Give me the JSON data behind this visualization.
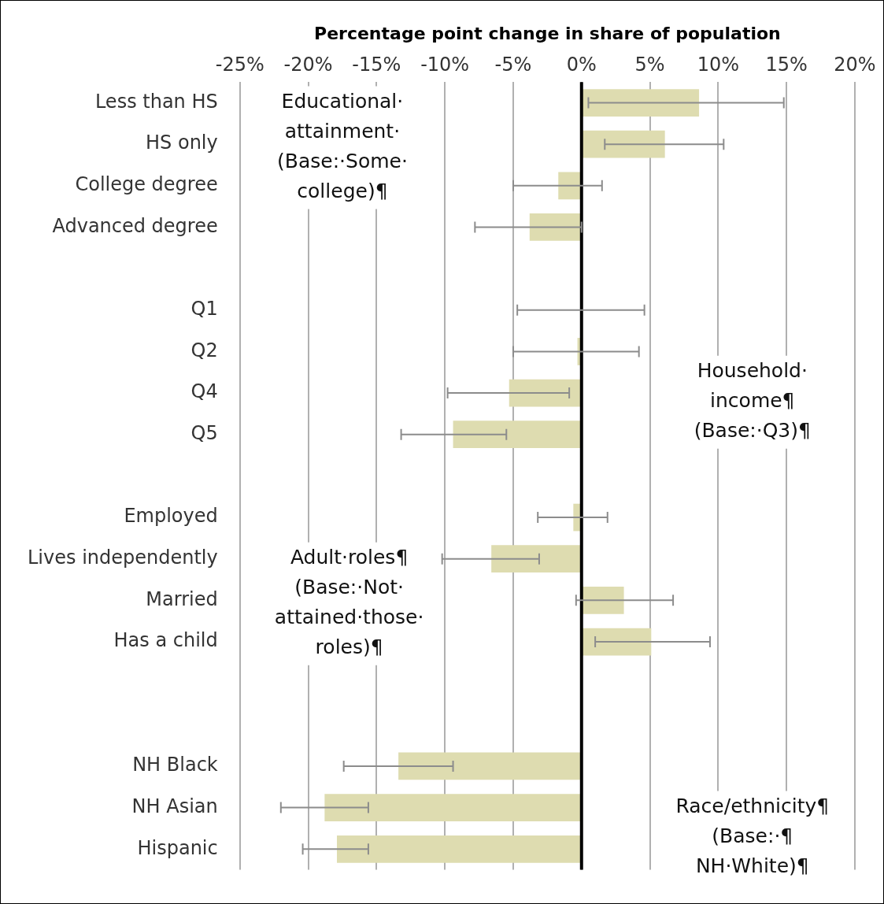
{
  "chart_data": {
    "type": "bar",
    "orientation": "horizontal",
    "xlabel": "Percentage point change in share of population",
    "categories": [
      "Less than HS",
      "HS only",
      "College degree",
      "Advanced degree",
      null,
      "Q1",
      "Q2",
      "Q4",
      "Q5",
      null,
      "Employed",
      "Lives independently",
      "Married",
      "Has a child",
      null,
      null,
      "NH Black",
      "NH Asian",
      "Hispanic"
    ],
    "values": [
      8.6,
      6.1,
      -1.7,
      -3.8,
      null,
      0,
      -0.3,
      -5.3,
      -9.4,
      null,
      -0.6,
      -6.6,
      3.1,
      5.1,
      null,
      null,
      -13.4,
      -18.8,
      -17.9
    ],
    "errors": [
      [
        0.5,
        14.8
      ],
      [
        1.7,
        10.4
      ],
      [
        -5.0,
        1.5
      ],
      [
        -7.8,
        0
      ],
      null,
      [
        -4.7,
        4.6
      ],
      [
        -5.0,
        4.2
      ],
      [
        -9.8,
        -0.9
      ],
      [
        -13.2,
        -5.5
      ],
      null,
      [
        -3.2,
        1.9
      ],
      [
        -10.2,
        -3.1
      ],
      [
        -0.4,
        6.7
      ],
      [
        1.0,
        9.4
      ],
      null,
      null,
      [
        -17.4,
        -9.4
      ],
      [
        -22.0,
        -15.6
      ],
      [
        -20.4,
        -15.6
      ]
    ],
    "color": "#dedcb0",
    "xlim": [
      -25,
      20
    ],
    "xticks": [
      {
        "value": -25,
        "label": "-25%"
      },
      {
        "value": -20,
        "label": "-20%"
      },
      {
        "value": -15,
        "label": "-15%"
      },
      {
        "value": -10,
        "label": "-10%"
      },
      {
        "value": -5,
        "label": "-5%"
      },
      {
        "value": 0,
        "label": "0%"
      },
      {
        "value": 5,
        "label": "5%"
      },
      {
        "value": 10,
        "label": "10%"
      },
      {
        "value": 15,
        "label": "15%"
      },
      {
        "value": 20,
        "label": "20%"
      }
    ],
    "ref_lines": [
      {
        "axis": "x",
        "value": 0,
        "color": "#000000"
      }
    ],
    "grid": "x",
    "legend": false,
    "annotations": [
      "Educational·\nattainment·\n(Base:·Some·\ncollege)¶",
      "Household·\nincome¶\n(Base:·Q3)¶",
      "Adult·roles¶\n(Base:·Not·\nattained·those·\nroles)¶",
      "Race/ethnicity¶\n(Base:·¶\nNH·White)¶"
    ]
  }
}
